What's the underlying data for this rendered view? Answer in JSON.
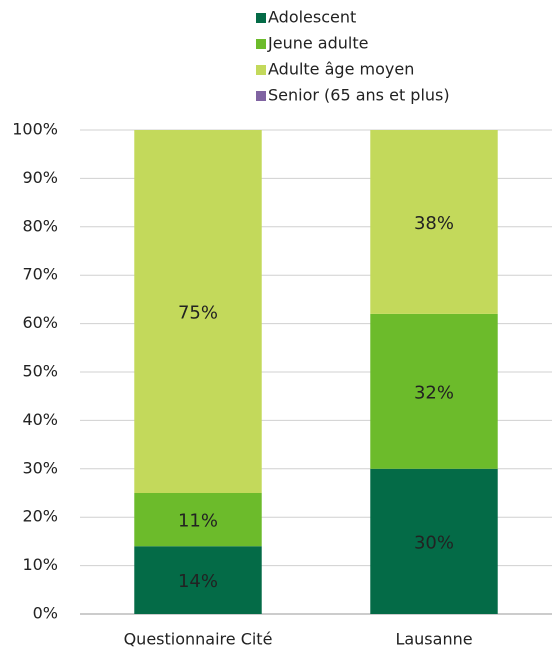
{
  "chart_data": {
    "type": "stacked_bar",
    "categories": [
      "Questionnaire Cité",
      "Lausanne"
    ],
    "series": [
      {
        "name": "Adolescent",
        "color": "#046b47",
        "values": [
          14,
          30
        ],
        "value_labels": [
          "14%",
          "30%"
        ]
      },
      {
        "name": "Jeune adulte",
        "color": "#6cbb2b",
        "values": [
          11,
          32
        ],
        "value_labels": [
          "11%",
          "32%"
        ]
      },
      {
        "name": "Adulte âge moyen",
        "color": "#c3d95b",
        "values": [
          75,
          38
        ],
        "value_labels": [
          "75%",
          "38%"
        ]
      },
      {
        "name": "Senior (65 ans et plus)",
        "color": "#8064a2",
        "values": [
          0,
          0
        ]
      }
    ],
    "ylim": [
      0,
      100
    ],
    "yticks": [
      {
        "value": 0,
        "label": "0%"
      },
      {
        "value": 10,
        "label": "10%"
      },
      {
        "value": 20,
        "label": "20%"
      },
      {
        "value": 30,
        "label": "30%"
      },
      {
        "value": 40,
        "label": "40%"
      },
      {
        "value": 50,
        "label": "50%"
      },
      {
        "value": 60,
        "label": "60%"
      },
      {
        "value": 70,
        "label": "70%"
      },
      {
        "value": 80,
        "label": "80%"
      },
      {
        "value": 90,
        "label": "90%"
      },
      {
        "value": 100,
        "label": "100%"
      }
    ],
    "grid": true,
    "legend": "top"
  }
}
